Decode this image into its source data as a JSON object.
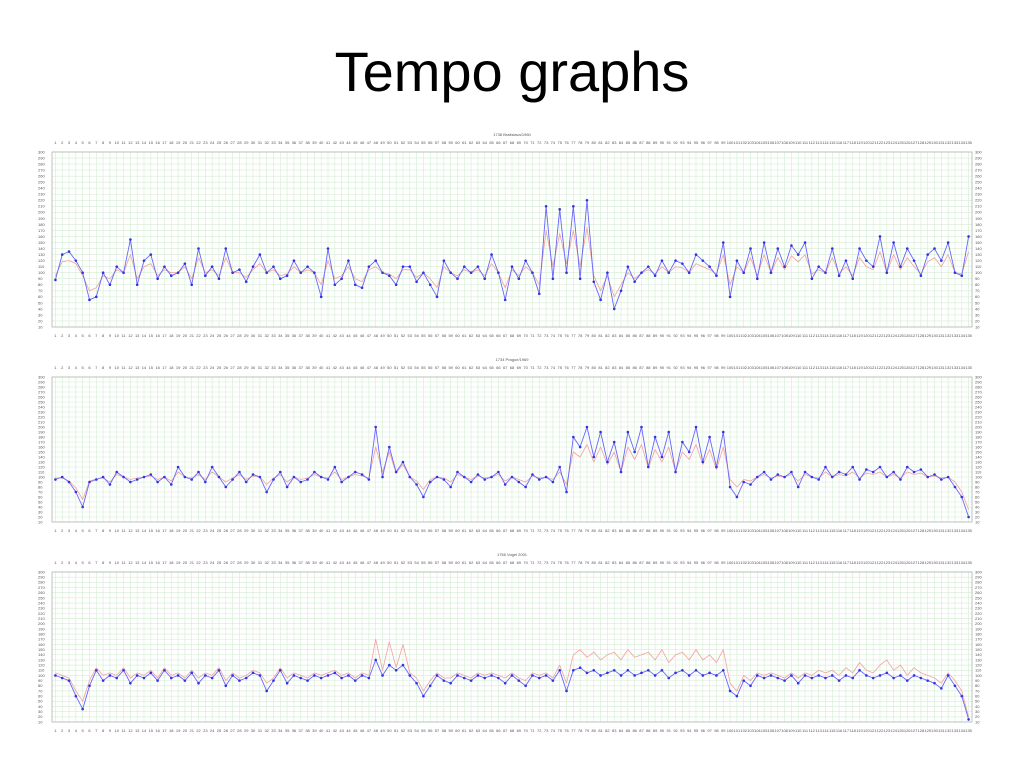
{
  "slide": {
    "title": "Tempo graphs"
  },
  "colors": {
    "series_primary": "#6666ff",
    "series_reference": "#f4a0a0",
    "points": "#3333dd",
    "grid": "#d3ecd3"
  },
  "chart_data": [
    {
      "type": "line",
      "subtitle": "1738 Bratislava/1960",
      "ylim": [
        10,
        300
      ],
      "yticks": [
        10,
        20,
        30,
        40,
        50,
        60,
        70,
        80,
        90,
        100,
        110,
        120,
        130,
        140,
        150,
        160,
        170,
        180,
        190,
        200,
        210,
        220,
        230,
        240,
        250,
        260,
        270,
        280,
        290,
        300
      ],
      "x_count": 135,
      "grid": true,
      "series": [
        {
          "values": [
            88,
            130,
            135,
            120,
            100,
            55,
            60,
            100,
            80,
            110,
            100,
            155,
            80,
            120,
            130,
            90,
            110,
            95,
            100,
            115,
            80,
            140,
            95,
            110,
            90,
            140,
            100,
            105,
            85,
            110,
            130,
            100,
            110,
            90,
            95,
            120,
            100,
            110,
            100,
            60,
            140,
            80,
            90,
            120,
            80,
            75,
            110,
            120,
            100,
            95,
            80,
            110,
            110,
            85,
            100,
            80,
            60,
            120,
            100,
            90,
            110,
            100,
            110,
            90,
            130,
            100,
            55,
            110,
            90,
            120,
            100,
            65,
            210,
            90,
            205,
            100,
            210,
            90,
            220,
            85,
            55,
            100,
            40,
            70,
            110,
            85,
            100,
            110,
            95,
            120,
            100,
            120,
            115,
            100,
            130,
            120,
            110,
            95,
            150,
            60,
            120,
            100,
            140,
            90,
            150,
            100,
            140,
            110,
            145,
            130,
            150,
            90,
            110,
            100,
            140,
            95,
            120,
            90,
            140,
            120,
            110,
            160,
            100,
            150,
            110,
            140,
            120,
            95,
            130,
            140,
            120,
            150,
            100,
            95,
            160
          ]
        },
        {
          "values": [
            95,
            118,
            120,
            115,
            95,
            70,
            75,
            95,
            90,
            105,
            100,
            130,
            90,
            110,
            115,
            95,
            105,
            100,
            100,
            110,
            90,
            125,
            100,
            105,
            95,
            125,
            100,
            100,
            92,
            105,
            115,
            100,
            105,
            95,
            98,
            110,
            100,
            105,
            100,
            80,
            120,
            90,
            95,
            110,
            90,
            85,
            105,
            110,
            100,
            98,
            90,
            105,
            105,
            92,
            100,
            90,
            75,
            110,
            100,
            95,
            105,
            100,
            105,
            95,
            115,
            100,
            75,
            105,
            95,
            110,
            100,
            80,
            170,
            110,
            165,
            115,
            170,
            110,
            175,
            95,
            70,
            95,
            60,
            80,
            100,
            90,
            100,
            105,
            98,
            110,
            100,
            110,
            108,
            100,
            115,
            110,
            105,
            98,
            130,
            80,
            110,
            100,
            125,
            95,
            130,
            100,
            125,
            105,
            128,
            118,
            130,
            98,
            105,
            100,
            125,
            98,
            110,
            95,
            125,
            110,
            105,
            135,
            100,
            130,
            105,
            125,
            110,
            98,
            118,
            125,
            110,
            130,
            100,
            98,
            135
          ]
        }
      ]
    },
    {
      "type": "line",
      "subtitle": "1734 Prague/1969",
      "ylim": [
        10,
        300
      ],
      "yticks": [
        10,
        20,
        30,
        40,
        50,
        60,
        70,
        80,
        90,
        100,
        110,
        120,
        130,
        140,
        150,
        160,
        170,
        180,
        190,
        200,
        210,
        220,
        230,
        240,
        250,
        260,
        270,
        280,
        290,
        300
      ],
      "x_count": 135,
      "grid": true,
      "series": [
        {
          "values": [
            95,
            100,
            90,
            70,
            40,
            90,
            95,
            100,
            85,
            110,
            100,
            90,
            95,
            100,
            105,
            90,
            100,
            85,
            120,
            100,
            95,
            110,
            90,
            120,
            100,
            80,
            95,
            110,
            90,
            105,
            100,
            70,
            95,
            110,
            80,
            100,
            90,
            95,
            110,
            100,
            95,
            120,
            90,
            100,
            110,
            105,
            95,
            200,
            100,
            160,
            110,
            130,
            100,
            85,
            60,
            90,
            100,
            95,
            80,
            110,
            100,
            90,
            105,
            95,
            100,
            110,
            85,
            100,
            90,
            80,
            105,
            95,
            100,
            90,
            120,
            70,
            180,
            160,
            200,
            140,
            190,
            130,
            170,
            110,
            190,
            150,
            200,
            120,
            180,
            140,
            190,
            110,
            170,
            150,
            200,
            130,
            180,
            120,
            190,
            80,
            60,
            90,
            85,
            100,
            110,
            95,
            105,
            100,
            110,
            80,
            110,
            100,
            95,
            120,
            100,
            110,
            105,
            120,
            95,
            115,
            110,
            120,
            100,
            110,
            95,
            120,
            110,
            115,
            100,
            105,
            95,
            100,
            80,
            60,
            20
          ]
        },
        {
          "values": [
            98,
            98,
            92,
            78,
            55,
            92,
            96,
            98,
            90,
            105,
            100,
            95,
            98,
            100,
            102,
            95,
            100,
            92,
            110,
            100,
            98,
            105,
            95,
            110,
            100,
            90,
            98,
            105,
            95,
            102,
            100,
            85,
            98,
            105,
            90,
            100,
            95,
            98,
            105,
            100,
            98,
            110,
            95,
            100,
            105,
            102,
            98,
            160,
            110,
            150,
            108,
            125,
            100,
            92,
            75,
            95,
            100,
            98,
            90,
            105,
            100,
            95,
            102,
            98,
            100,
            105,
            92,
            100,
            95,
            90,
            102,
            98,
            100,
            95,
            110,
            85,
            150,
            140,
            165,
            130,
            160,
            125,
            150,
            110,
            160,
            135,
            165,
            118,
            155,
            130,
            160,
            110,
            150,
            135,
            165,
            125,
            155,
            115,
            160,
            95,
            80,
            95,
            92,
            100,
            105,
            98,
            102,
            100,
            105,
            92,
            105,
            100,
            98,
            110,
            100,
            105,
            102,
            110,
            98,
            108,
            105,
            110,
            100,
            105,
            98,
            110,
            105,
            108,
            100,
            102,
            98,
            100,
            90,
            70,
            35
          ]
        }
      ]
    },
    {
      "type": "line",
      "subtitle": "1756 Vogel 2001",
      "ylim": [
        10,
        300
      ],
      "yticks": [
        10,
        20,
        30,
        40,
        50,
        60,
        70,
        80,
        90,
        100,
        110,
        120,
        130,
        140,
        150,
        160,
        170,
        180,
        190,
        200,
        210,
        220,
        230,
        240,
        250,
        260,
        270,
        280,
        290,
        300
      ],
      "x_count": 135,
      "grid": true,
      "series": [
        {
          "values": [
            100,
            95,
            90,
            60,
            35,
            80,
            110,
            90,
            100,
            95,
            110,
            85,
            100,
            95,
            105,
            90,
            110,
            95,
            100,
            90,
            105,
            85,
            100,
            95,
            110,
            80,
            100,
            90,
            95,
            105,
            100,
            70,
            90,
            110,
            85,
            100,
            95,
            90,
            100,
            95,
            100,
            105,
            95,
            100,
            90,
            100,
            95,
            130,
            100,
            120,
            110,
            120,
            100,
            85,
            60,
            80,
            100,
            90,
            85,
            100,
            95,
            90,
            100,
            95,
            100,
            95,
            85,
            100,
            90,
            80,
            100,
            95,
            100,
            90,
            110,
            70,
            110,
            115,
            105,
            110,
            100,
            105,
            110,
            100,
            110,
            100,
            105,
            110,
            100,
            110,
            95,
            105,
            110,
            100,
            110,
            100,
            105,
            100,
            110,
            70,
            60,
            90,
            80,
            100,
            95,
            100,
            95,
            90,
            100,
            85,
            100,
            95,
            100,
            95,
            100,
            90,
            100,
            95,
            110,
            100,
            95,
            100,
            105,
            95,
            100,
            90,
            100,
            95,
            90,
            85,
            75,
            100,
            80,
            60,
            15
          ]
        },
        {
          "values": [
            105,
            100,
            95,
            70,
            50,
            90,
            115,
            100,
            105,
            100,
            115,
            95,
            105,
            100,
            110,
            95,
            115,
            100,
            105,
            95,
            110,
            95,
            105,
            100,
            115,
            90,
            105,
            95,
            100,
            110,
            105,
            85,
            95,
            115,
            95,
            105,
            100,
            95,
            105,
            100,
            105,
            110,
            100,
            105,
            95,
            105,
            100,
            170,
            110,
            165,
            115,
            160,
            105,
            95,
            70,
            90,
            105,
            95,
            95,
            105,
            100,
            95,
            105,
            100,
            105,
            100,
            95,
            105,
            95,
            90,
            105,
            100,
            105,
            95,
            120,
            85,
            140,
            150,
            135,
            145,
            130,
            140,
            145,
            130,
            150,
            135,
            140,
            145,
            130,
            150,
            125,
            140,
            145,
            130,
            150,
            130,
            140,
            125,
            150,
            85,
            70,
            100,
            90,
            105,
            100,
            105,
            100,
            95,
            105,
            95,
            105,
            100,
            110,
            105,
            110,
            100,
            115,
            105,
            125,
            110,
            105,
            120,
            130,
            110,
            120,
            100,
            115,
            105,
            100,
            95,
            85,
            105,
            90,
            70,
            20
          ]
        }
      ]
    }
  ]
}
